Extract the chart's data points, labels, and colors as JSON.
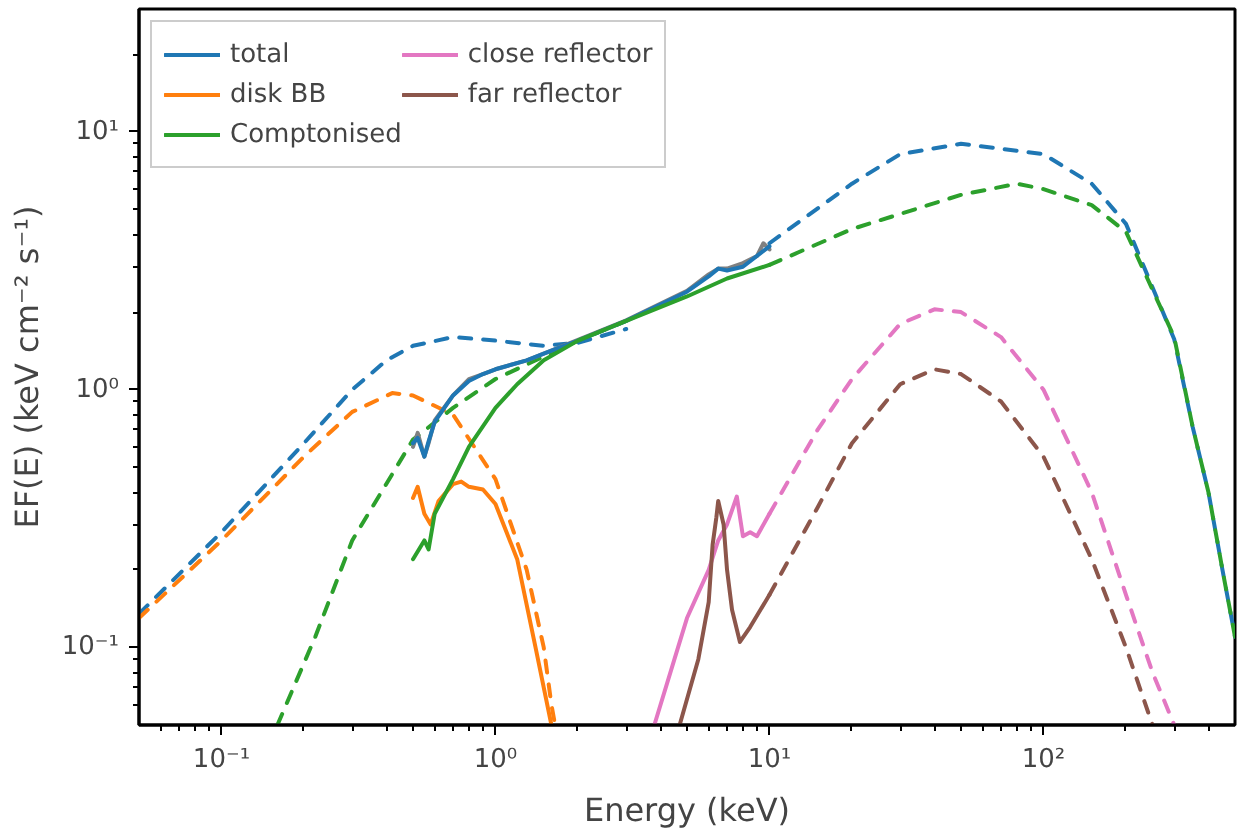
{
  "chart_data": {
    "type": "line",
    "xlabel": "Energy (keV)",
    "ylabel": "EF(E) (keV cm⁻² s⁻¹)",
    "log": "xy",
    "xlim": [
      0.05,
      500
    ],
    "ylim": [
      0.05,
      30
    ],
    "xticks": [
      {
        "value": 0.06,
        "label": null
      },
      {
        "value": 0.07,
        "label": null
      },
      {
        "value": 0.08,
        "label": null
      },
      {
        "value": 0.09,
        "label": null
      },
      {
        "value": 0.1,
        "label": "10⁻¹"
      },
      {
        "value": 0.2,
        "label": null
      },
      {
        "value": 0.3,
        "label": null
      },
      {
        "value": 0.4,
        "label": null
      },
      {
        "value": 0.5,
        "label": null
      },
      {
        "value": 0.6,
        "label": null
      },
      {
        "value": 0.7,
        "label": null
      },
      {
        "value": 0.8,
        "label": null
      },
      {
        "value": 0.9,
        "label": null
      },
      {
        "value": 1,
        "label": "10⁰"
      },
      {
        "value": 2,
        "label": null
      },
      {
        "value": 3,
        "label": null
      },
      {
        "value": 4,
        "label": null
      },
      {
        "value": 5,
        "label": null
      },
      {
        "value": 6,
        "label": null
      },
      {
        "value": 7,
        "label": null
      },
      {
        "value": 8,
        "label": null
      },
      {
        "value": 9,
        "label": null
      },
      {
        "value": 10,
        "label": "10¹"
      },
      {
        "value": 20,
        "label": null
      },
      {
        "value": 30,
        "label": null
      },
      {
        "value": 40,
        "label": null
      },
      {
        "value": 50,
        "label": null
      },
      {
        "value": 60,
        "label": null
      },
      {
        "value": 70,
        "label": null
      },
      {
        "value": 80,
        "label": null
      },
      {
        "value": 90,
        "label": null
      },
      {
        "value": 100,
        "label": "10²"
      },
      {
        "value": 200,
        "label": null
      },
      {
        "value": 300,
        "label": null
      },
      {
        "value": 400,
        "label": null
      }
    ],
    "yticks": [
      {
        "value": 0.06,
        "label": null
      },
      {
        "value": 0.07,
        "label": null
      },
      {
        "value": 0.08,
        "label": null
      },
      {
        "value": 0.09,
        "label": null
      },
      {
        "value": 0.1,
        "label": "10⁻¹"
      },
      {
        "value": 0.2,
        "label": null
      },
      {
        "value": 0.3,
        "label": null
      },
      {
        "value": 0.4,
        "label": null
      },
      {
        "value": 0.5,
        "label": null
      },
      {
        "value": 0.6,
        "label": null
      },
      {
        "value": 0.7,
        "label": null
      },
      {
        "value": 0.8,
        "label": null
      },
      {
        "value": 0.9,
        "label": null
      },
      {
        "value": 1,
        "label": "10⁰"
      },
      {
        "value": 2,
        "label": null
      },
      {
        "value": 3,
        "label": null
      },
      {
        "value": 4,
        "label": null
      },
      {
        "value": 5,
        "label": null
      },
      {
        "value": 6,
        "label": null
      },
      {
        "value": 7,
        "label": null
      },
      {
        "value": 8,
        "label": null
      },
      {
        "value": 9,
        "label": null
      },
      {
        "value": 10,
        "label": "10¹"
      },
      {
        "value": 20,
        "label": null
      }
    ],
    "legend": "top left",
    "grid": false,
    "series": [
      {
        "color": "#1f77b4",
        "line_style": "dashed",
        "x": [
          0.05,
          0.1,
          0.2,
          0.3,
          0.4,
          0.5,
          0.7,
          1.0,
          1.5,
          2,
          3,
          4,
          10,
          20,
          30,
          50,
          100,
          150,
          200,
          300,
          350,
          400,
          450,
          500
        ],
        "values": [
          0.135,
          0.28,
          0.62,
          1.0,
          1.3,
          1.48,
          1.6,
          1.55,
          1.48,
          1.52,
          1.72,
          null,
          3.7,
          6.3,
          8.2,
          9.0,
          8.2,
          6.3,
          4.4,
          1.57,
          0.72,
          0.4,
          0.2,
          0.11
        ]
      },
      {
        "color": "#ff7f0e",
        "line_style": "dashed",
        "x": [
          0.05,
          0.1,
          0.2,
          0.3,
          0.42,
          0.5,
          0.7,
          1.0,
          1.3,
          1.5,
          1.6,
          1.65
        ],
        "values": [
          0.13,
          0.26,
          0.55,
          0.82,
          0.97,
          0.95,
          0.8,
          0.45,
          0.2,
          0.1,
          0.06,
          0.05
        ]
      },
      {
        "color": "#2ca02c",
        "line_style": "dashed",
        "x": [
          0.16,
          0.22,
          0.3,
          0.5,
          0.7,
          1.0,
          2,
          3,
          4,
          10,
          20,
          50,
          80,
          100,
          150,
          200,
          300,
          350,
          400,
          450,
          500
        ],
        "values": [
          0.05,
          0.11,
          0.26,
          0.64,
          0.85,
          1.1,
          1.55,
          1.85,
          null,
          3.05,
          4.2,
          5.7,
          6.3,
          6.0,
          5.2,
          4.1,
          1.6,
          0.72,
          0.4,
          0.2,
          0.11
        ]
      },
      {
        "color": "#e377c2",
        "line_style": "dashed",
        "x": [
          10,
          15,
          20,
          30,
          40,
          50,
          70,
          100,
          150,
          200,
          250,
          300
        ],
        "values": [
          0.33,
          0.7,
          1.1,
          1.8,
          2.05,
          2.0,
          1.6,
          1.0,
          0.4,
          0.16,
          0.08,
          0.05
        ]
      },
      {
        "color": "#8c564b",
        "line_style": "dashed",
        "x": [
          10,
          15,
          20,
          30,
          40,
          50,
          70,
          100,
          150,
          200,
          250
        ],
        "values": [
          0.16,
          0.35,
          0.62,
          1.05,
          1.2,
          1.15,
          0.9,
          0.55,
          0.22,
          0.1,
          0.05
        ]
      },
      {
        "color": "#808080",
        "line_style": "solid",
        "x": [
          0.5,
          0.52,
          0.55,
          0.57,
          0.6,
          0.7,
          0.8,
          0.9,
          1.0,
          1.3,
          1.5,
          2,
          3,
          5,
          6,
          6.5,
          7,
          8,
          9,
          9.5,
          10
        ],
        "values": [
          0.6,
          0.68,
          0.55,
          0.62,
          0.76,
          0.95,
          1.1,
          1.15,
          1.2,
          1.3,
          1.38,
          1.56,
          1.86,
          2.42,
          2.8,
          2.95,
          2.95,
          3.1,
          3.3,
          3.7,
          3.5
        ]
      },
      {
        "name": "total",
        "color": "#1f77b4",
        "line_style": "solid",
        "x": [
          0.5,
          0.52,
          0.55,
          0.57,
          0.6,
          0.7,
          0.8,
          0.9,
          1.0,
          1.3,
          1.5,
          2,
          3,
          5,
          6,
          6.5,
          7,
          8,
          10
        ],
        "values": [
          0.62,
          0.65,
          0.55,
          0.63,
          0.75,
          0.95,
          1.08,
          1.15,
          1.2,
          1.3,
          1.38,
          1.55,
          1.85,
          2.4,
          2.75,
          2.95,
          2.9,
          3.0,
          3.6
        ]
      },
      {
        "name": "disk BB",
        "color": "#ff7f0e",
        "line_style": "solid",
        "x": [
          0.5,
          0.52,
          0.55,
          0.58,
          0.62,
          0.7,
          0.75,
          0.8,
          0.9,
          1.0,
          1.2,
          1.4,
          1.6
        ],
        "values": [
          0.38,
          0.42,
          0.33,
          0.3,
          0.37,
          0.43,
          0.44,
          0.42,
          0.41,
          0.36,
          0.22,
          0.1,
          0.05
        ]
      },
      {
        "name": "Comptonised",
        "color": "#2ca02c",
        "line_style": "solid",
        "x": [
          0.5,
          0.55,
          0.57,
          0.6,
          0.7,
          0.8,
          1.0,
          1.2,
          1.5,
          2,
          3,
          5,
          7,
          10
        ],
        "values": [
          0.22,
          0.26,
          0.24,
          0.33,
          0.45,
          0.6,
          0.85,
          1.05,
          1.3,
          1.55,
          1.85,
          2.3,
          2.7,
          3.05
        ]
      },
      {
        "name": "close reflector",
        "color": "#e377c2",
        "line_style": "solid",
        "x": [
          3.8,
          4.5,
          5,
          6,
          6.5,
          7,
          7.6,
          8,
          8.5,
          9,
          10
        ],
        "values": [
          0.05,
          0.09,
          0.13,
          0.2,
          0.26,
          0.3,
          0.385,
          0.27,
          0.28,
          0.27,
          0.33
        ]
      },
      {
        "name": "far reflector",
        "color": "#8c564b",
        "line_style": "solid",
        "x": [
          4.7,
          5.5,
          6,
          6.2,
          6.4,
          6.5,
          6.8,
          7,
          7.3,
          7.8,
          8.5,
          10
        ],
        "values": [
          0.05,
          0.09,
          0.15,
          0.25,
          0.32,
          0.37,
          0.3,
          0.2,
          0.14,
          0.105,
          0.12,
          0.16
        ]
      }
    ]
  }
}
